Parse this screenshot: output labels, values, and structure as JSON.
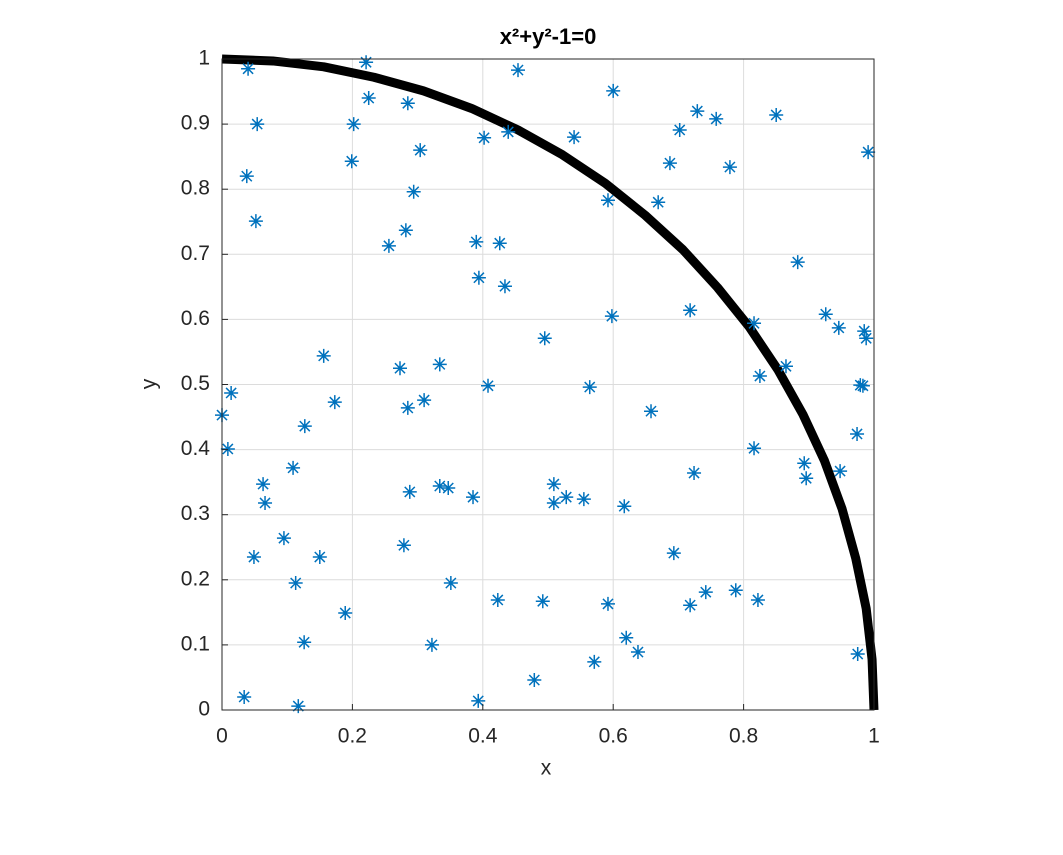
{
  "chart_data": {
    "type": "scatter",
    "title": "x²+y²-1=0",
    "xlabel": "x",
    "ylabel": "y",
    "xlim": [
      0,
      1
    ],
    "ylim": [
      0,
      1
    ],
    "xticks": [
      0,
      0.2,
      0.4,
      0.6,
      0.8,
      1
    ],
    "yticks": [
      0,
      0.1,
      0.2,
      0.3,
      0.4,
      0.5,
      0.6,
      0.7,
      0.8,
      0.9,
      1
    ],
    "grid": true,
    "series": [
      {
        "type": "line",
        "color": "#000000",
        "x": [
          0,
          0.078,
          0.156,
          0.233,
          0.309,
          0.383,
          0.454,
          0.522,
          0.588,
          0.649,
          0.707,
          0.76,
          0.809,
          0.853,
          0.891,
          0.924,
          0.951,
          0.972,
          0.988,
          0.997,
          1
        ],
        "values": [
          1,
          0.997,
          0.988,
          0.972,
          0.951,
          0.924,
          0.891,
          0.853,
          0.809,
          0.76,
          0.707,
          0.649,
          0.588,
          0.522,
          0.454,
          0.383,
          0.309,
          0.233,
          0.156,
          0.078,
          0
        ]
      },
      {
        "type": "scatter",
        "marker": "*",
        "color": "#0072bd",
        "x": [
          0.04,
          0.221,
          0.454,
          0.054,
          0.225,
          0.202,
          0.285,
          0.402,
          0.439,
          0.54,
          0.6,
          0.729,
          0.702,
          0.758,
          0.85,
          0.991,
          0.038,
          0.199,
          0.304,
          0.294,
          0.687,
          0.779,
          0.052,
          0.592,
          0.669,
          0.256,
          0.282,
          0.39,
          0.426,
          0.394,
          0.434,
          0.883,
          0.598,
          0.718,
          0.816,
          0.926,
          0.946,
          0.985,
          0.988,
          0.495,
          0.156,
          0.273,
          0.334,
          0.564,
          0.408,
          0.825,
          0.865,
          0.979,
          0.983,
          0.014,
          0.173,
          0.285,
          0.31,
          0.0,
          0.127,
          0.974,
          0.658,
          0.009,
          0.816,
          0.109,
          0.724,
          0.893,
          0.896,
          0.948,
          0.063,
          0.066,
          0.288,
          0.334,
          0.347,
          0.385,
          0.509,
          0.509,
          0.528,
          0.555,
          0.617,
          0.095,
          0.279,
          0.049,
          0.15,
          0.693,
          0.113,
          0.351,
          0.423,
          0.492,
          0.592,
          0.718,
          0.742,
          0.788,
          0.822,
          0.189,
          0.126,
          0.322,
          0.62,
          0.638,
          0.975,
          0.571,
          0.479,
          0.034,
          0.117,
          0.393
        ],
        "values": [
          0.985,
          0.995,
          0.983,
          0.9,
          0.94,
          0.9,
          0.932,
          0.879,
          0.888,
          0.88,
          0.951,
          0.92,
          0.891,
          0.908,
          0.914,
          0.857,
          0.82,
          0.843,
          0.86,
          0.796,
          0.84,
          0.834,
          0.751,
          0.783,
          0.78,
          0.713,
          0.737,
          0.719,
          0.717,
          0.664,
          0.651,
          0.688,
          0.605,
          0.614,
          0.594,
          0.608,
          0.587,
          0.582,
          0.571,
          0.571,
          0.544,
          0.525,
          0.531,
          0.496,
          0.498,
          0.513,
          0.528,
          0.499,
          0.498,
          0.487,
          0.473,
          0.464,
          0.476,
          0.453,
          0.436,
          0.424,
          0.459,
          0.401,
          0.402,
          0.372,
          0.364,
          0.379,
          0.356,
          0.367,
          0.347,
          0.318,
          0.335,
          0.344,
          0.341,
          0.327,
          0.347,
          0.318,
          0.327,
          0.324,
          0.313,
          0.264,
          0.253,
          0.235,
          0.235,
          0.241,
          0.195,
          0.195,
          0.169,
          0.167,
          0.163,
          0.161,
          0.181,
          0.184,
          0.169,
          0.149,
          0.104,
          0.1,
          0.111,
          0.089,
          0.086,
          0.074,
          0.046,
          0.02,
          0.006,
          0.014
        ]
      }
    ]
  }
}
